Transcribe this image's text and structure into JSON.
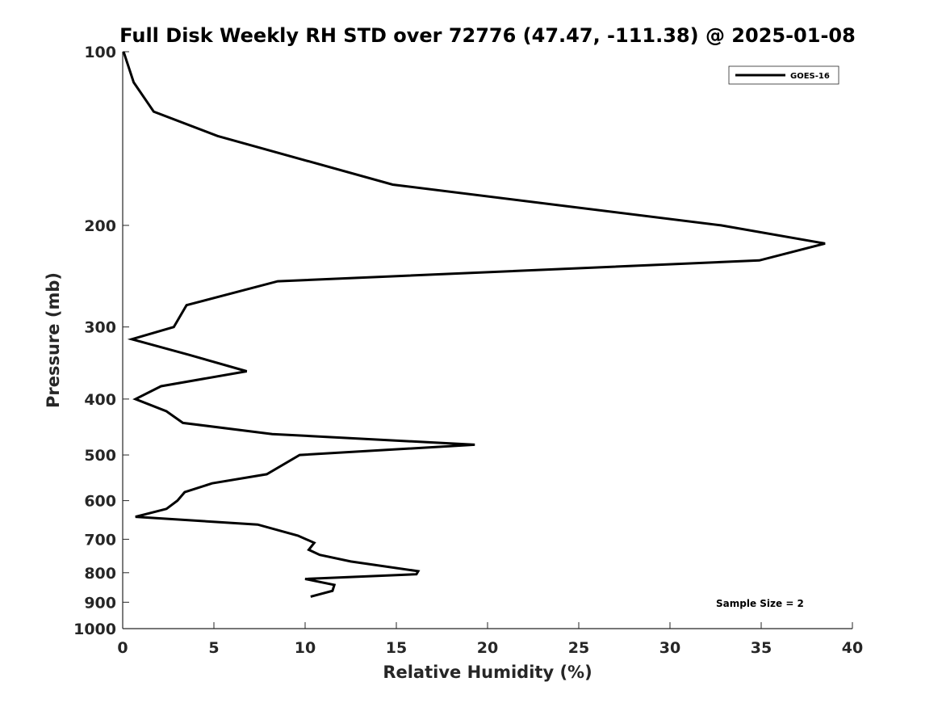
{
  "chart_data": {
    "type": "line",
    "title": "Full Disk Weekly RH STD over 72776 (47.47, -111.38) @ 2025-01-08",
    "xlabel": "Relative Humidity (%)",
    "ylabel": "Pressure (mb)",
    "xlim": [
      0,
      40
    ],
    "ylim": [
      100,
      1000
    ],
    "yscale": "log",
    "y_reversed": true,
    "x_ticks": [
      0,
      5,
      10,
      15,
      20,
      25,
      30,
      35,
      40
    ],
    "x_tick_labels": [
      "0",
      "5",
      "10",
      "15",
      "20",
      "25",
      "30",
      "35",
      "40"
    ],
    "y_ticks": [
      100,
      200,
      300,
      400,
      500,
      600,
      700,
      800,
      900,
      1000
    ],
    "y_tick_labels": [
      "100",
      "200",
      "300",
      "400",
      "500",
      "600",
      "700",
      "800",
      "900",
      "1000"
    ],
    "grid": false,
    "legend_position": "top-right",
    "annotation": "Sample Size = 2",
    "series": [
      {
        "name": "GOES-16",
        "color": "#000000",
        "x": [
          0.05,
          0.6,
          1.7,
          5.2,
          14.8,
          32.8,
          38.5,
          34.9,
          8.5,
          3.5,
          2.8,
          0.5,
          3.6,
          6.8,
          2.1,
          0.7,
          2.4,
          3.3,
          8.2,
          19.3,
          9.7,
          7.9,
          4.9,
          3.4,
          3.0,
          2.4,
          0.7,
          7.4,
          9.6,
          10.5,
          10.2,
          10.8,
          12.5,
          16.2,
          16.1,
          10.0,
          11.6,
          11.5,
          10.3
        ],
        "y": [
          100,
          113,
          127,
          140,
          170,
          200,
          215,
          230,
          250,
          275,
          300,
          315,
          335,
          358,
          380,
          400,
          420,
          440,
          460,
          480,
          500,
          540,
          560,
          580,
          600,
          620,
          640,
          660,
          690,
          710,
          730,
          745,
          765,
          795,
          805,
          820,
          840,
          860,
          880
        ]
      }
    ]
  }
}
